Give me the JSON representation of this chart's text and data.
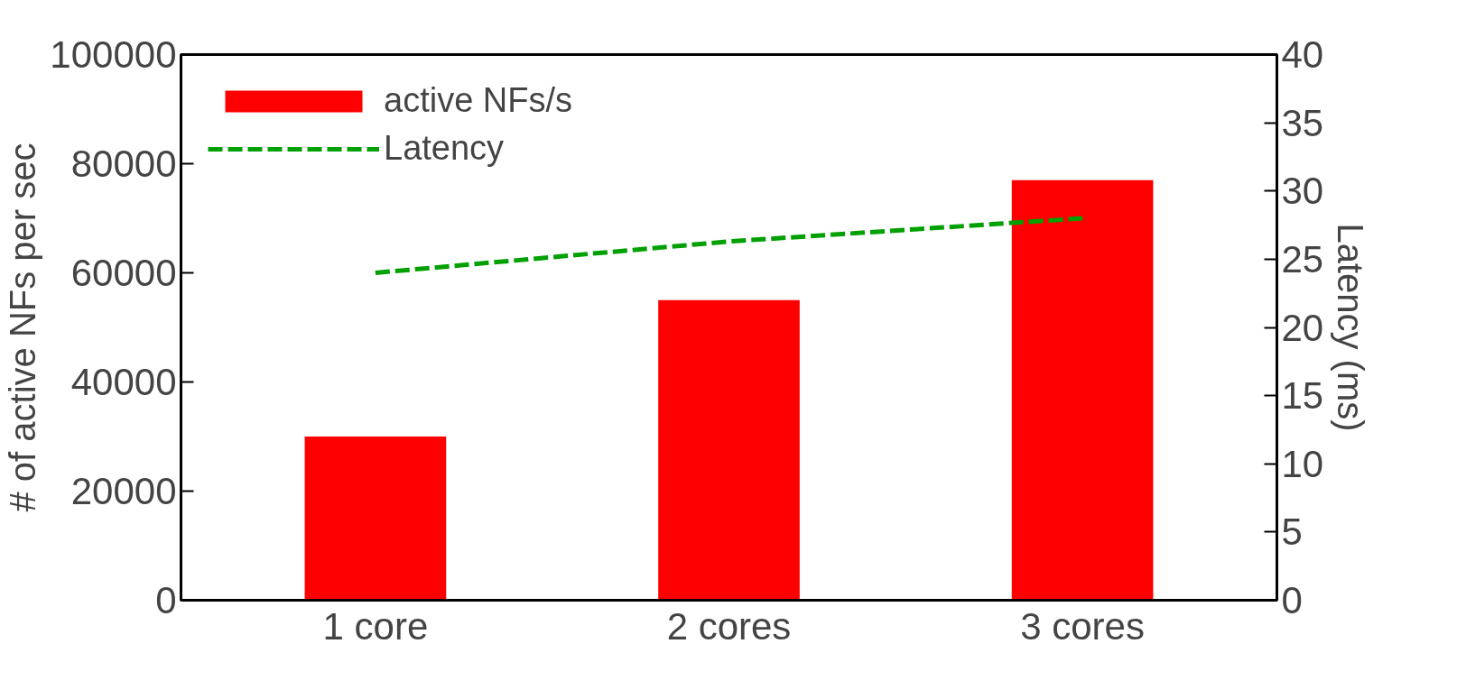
{
  "chart_data": {
    "type": "bar",
    "ylabel": "# of active NFs per sec",
    "y2label": "Latency (ms)",
    "categories": [
      "1 core",
      "2 cores",
      "3 cores"
    ],
    "series": [
      {
        "name": "active NFs/s",
        "color": "#ff0000",
        "values": [
          30000,
          55000,
          77000
        ]
      },
      {
        "name": "Latency",
        "type": "line",
        "axis": "y2",
        "color": "#00a000",
        "line_style": "dashed",
        "values": [
          24,
          26.3,
          28
        ]
      }
    ],
    "ylim": [
      0,
      100000
    ],
    "yticks": [
      0,
      20000,
      40000,
      60000,
      80000,
      100000
    ],
    "y2lim": [
      0,
      40
    ],
    "y2ticks": [
      0,
      5,
      10,
      15,
      20,
      25,
      30,
      35,
      40
    ],
    "grid": false,
    "legend": "top left"
  }
}
